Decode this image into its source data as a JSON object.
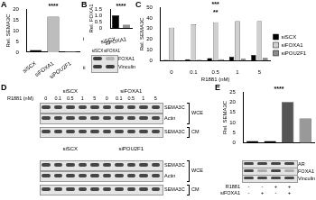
{
  "chart_data": [
    {
      "type": "bar",
      "ylabel": "Rel. SEMA3C",
      "categories": [
        "siSCX",
        "siFOXA1",
        "siPOU2F1"
      ],
      "values": [
        1,
        16.5,
        0.4
      ],
      "colors": [
        "#000000",
        "#bdbdbd",
        "#8c8c8c"
      ],
      "ylim": [
        0,
        20
      ],
      "yticks": [
        0,
        5,
        10,
        15,
        20
      ],
      "grid": false,
      "annotations": [
        "****"
      ]
    },
    {
      "type": "bar",
      "ylabel": "Rel. FOXA1",
      "categories": [
        "siSCX",
        "siFOXA1"
      ],
      "values": [
        1,
        0.25
      ],
      "colors": [
        "#000000",
        "#8c8c8c"
      ],
      "ylim": [
        0,
        1.5
      ],
      "yticks": [
        0,
        0.5,
        1,
        1.5
      ],
      "grid": false,
      "annotations": [
        "****"
      ]
    },
    {
      "type": "bar",
      "ylabel": "Rel. SEMA3C",
      "xlabel": "R1881 (nM)",
      "categories": [
        "0",
        "0.1",
        "0.5",
        "1",
        "5"
      ],
      "series": [
        {
          "name": "siSCX",
          "color": "#000000",
          "values": [
            1,
            1.6,
            2.6,
            3.8,
            5.5
          ]
        },
        {
          "name": "siFOXA1",
          "color": "#d0d0d0",
          "values": [
            31,
            34,
            36,
            37,
            37
          ]
        },
        {
          "name": "siPOU2F1",
          "color": "#8c8c8c",
          "values": [
            0.5,
            1,
            1.5,
            2,
            2.8
          ]
        }
      ],
      "ylim": [
        0,
        50
      ],
      "yticks": [
        0,
        10,
        20,
        30,
        40,
        50
      ],
      "grid": false,
      "legend": "right",
      "annotations": [
        "***",
        "**"
      ]
    },
    {
      "type": "bar",
      "ylabel": "Rel. SEMA3C",
      "categories": [
        null,
        null,
        null,
        null
      ],
      "values": [
        1,
        1,
        20,
        12
      ],
      "colors": [
        "#000000",
        "#000000",
        "#555555",
        "#999999"
      ],
      "ylim": [
        0,
        25
      ],
      "yticks": [
        0,
        5,
        10,
        15,
        20,
        25
      ],
      "grid": false,
      "annotations": [
        "****"
      ]
    }
  ],
  "figure": {
    "panel_labels": {
      "A": "A",
      "B": "B",
      "Bi": "i",
      "Bii": "ii",
      "C": "C",
      "D": "D",
      "E": "E"
    },
    "blot_Bii": {
      "lanes": [
        "siSCX",
        "siFOXA1"
      ],
      "rows": [
        "FOXA1",
        "Vinculin"
      ]
    },
    "blot_D": [
      {
        "groups": [
          "siSCX",
          "siFOXA1"
        ],
        "dose_label": "R1881 (nM)",
        "doses": [
          "0",
          "0.1",
          "0.5",
          "1",
          "5",
          "0",
          "0.1",
          "0.5",
          "1",
          "5"
        ],
        "rows": [
          {
            "name": "SEMA3C",
            "fraction": "WCE"
          },
          {
            "name": "Actin",
            "fraction": "WCE"
          },
          {
            "name": "SEMA3C",
            "fraction": "CM"
          }
        ]
      },
      {
        "groups": [
          "siSCX",
          "siPOU2F1"
        ],
        "rows": [
          {
            "name": "SEMA3C",
            "fraction": "WCE"
          },
          {
            "name": "Actin",
            "fraction": "WCE"
          },
          {
            "name": "SEMA3C",
            "fraction": "CM"
          }
        ]
      }
    ],
    "blot_E": {
      "rows": [
        "AR",
        "FOXA1",
        "Vinculin"
      ],
      "conditions": [
        {
          "label": "R1881",
          "marks": [
            "-",
            "-",
            "+",
            "+"
          ]
        },
        {
          "label": "siFOXA1",
          "marks": [
            "-",
            "+",
            "-",
            "+"
          ]
        }
      ]
    }
  }
}
